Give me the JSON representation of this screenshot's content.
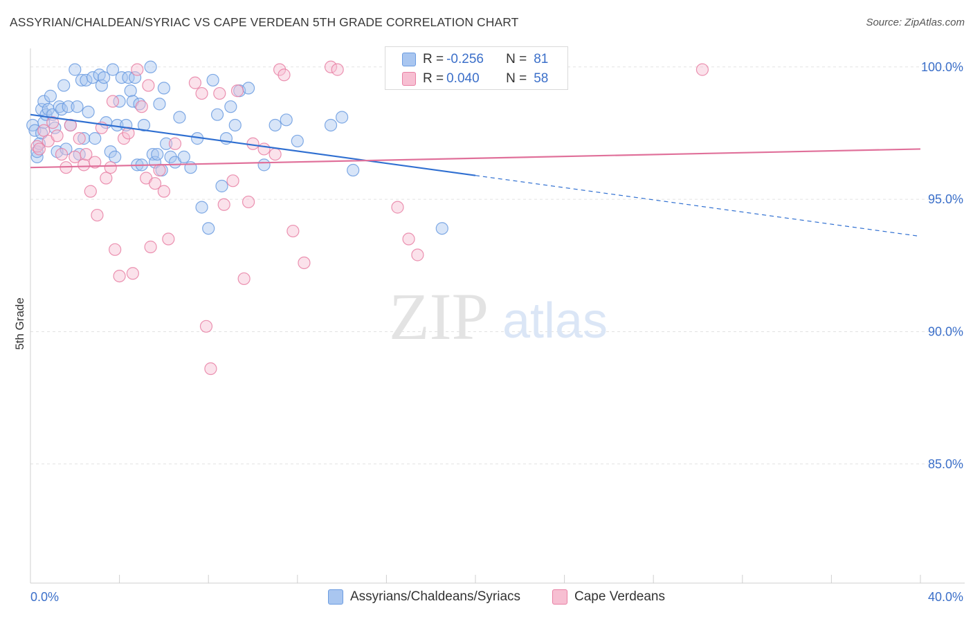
{
  "title": "ASSYRIAN/CHALDEAN/SYRIAC VS CAPE VERDEAN 5TH GRADE CORRELATION CHART",
  "source": "Source: ZipAtlas.com",
  "watermark": {
    "zip": "ZIP",
    "atlas": "atlas"
  },
  "legend": {
    "r_label": "R =",
    "n_label": "N =",
    "rows": [
      {
        "r": "-0.256",
        "n": "81"
      },
      {
        "r": "0.040",
        "n": "58"
      }
    ]
  },
  "bottom_legend": [
    "Assyrians/Chaldeans/Syriacs",
    "Cape Verdeans"
  ],
  "chart_data": {
    "type": "scatter",
    "title": "ASSYRIAN/CHALDEAN/SYRIAC VS CAPE VERDEAN 5TH GRADE CORRELATION CHART",
    "ylabel": "5th Grade",
    "xlabel": "",
    "x_ticks": [
      "0.0%",
      "40.0%"
    ],
    "y_ticks": [
      "100.0%",
      "95.0%",
      "90.0%",
      "85.0%"
    ],
    "xlim": [
      0,
      40
    ],
    "ylim": [
      80.5,
      100.7
    ],
    "grid": "horizontal dashed",
    "legend_position": "top-center",
    "series": [
      {
        "name": "Assyrians/Chaldeans/Syriacs",
        "color": "#6a9be0",
        "fill": "#a9c6f0",
        "r": -0.256,
        "n": 81,
        "trend": {
          "x0": 0,
          "y0": 98.2,
          "x1": 20,
          "y1": 95.9,
          "dash_to_x": 40,
          "dash_to_y": 93.6
        },
        "points": [
          [
            0.1,
            97.8
          ],
          [
            0.2,
            97.6
          ],
          [
            0.3,
            96.6
          ],
          [
            0.3,
            96.8
          ],
          [
            0.4,
            97.1
          ],
          [
            0.5,
            97.5
          ],
          [
            0.5,
            98.4
          ],
          [
            0.6,
            98.7
          ],
          [
            0.6,
            97.9
          ],
          [
            0.7,
            98.2
          ],
          [
            0.8,
            98.4
          ],
          [
            0.9,
            98.9
          ],
          [
            1.0,
            98.2
          ],
          [
            1.1,
            97.7
          ],
          [
            1.2,
            96.8
          ],
          [
            1.3,
            98.5
          ],
          [
            1.4,
            98.4
          ],
          [
            1.5,
            99.3
          ],
          [
            1.6,
            96.9
          ],
          [
            1.7,
            98.5
          ],
          [
            1.8,
            97.8
          ],
          [
            2.0,
            99.9
          ],
          [
            2.1,
            98.5
          ],
          [
            2.2,
            96.7
          ],
          [
            2.3,
            99.5
          ],
          [
            2.4,
            97.3
          ],
          [
            2.5,
            99.5
          ],
          [
            2.6,
            98.3
          ],
          [
            2.8,
            99.6
          ],
          [
            2.9,
            97.3
          ],
          [
            3.1,
            99.7
          ],
          [
            3.2,
            99.3
          ],
          [
            3.3,
            99.6
          ],
          [
            3.4,
            97.9
          ],
          [
            3.6,
            96.8
          ],
          [
            3.7,
            99.9
          ],
          [
            3.8,
            96.6
          ],
          [
            3.9,
            97.8
          ],
          [
            4.0,
            98.7
          ],
          [
            4.1,
            99.6
          ],
          [
            4.3,
            97.8
          ],
          [
            4.4,
            99.6
          ],
          [
            4.5,
            99.1
          ],
          [
            4.6,
            98.7
          ],
          [
            4.7,
            99.6
          ],
          [
            4.8,
            96.3
          ],
          [
            4.9,
            98.6
          ],
          [
            5.0,
            96.3
          ],
          [
            5.1,
            97.8
          ],
          [
            5.4,
            100.0
          ],
          [
            5.5,
            96.7
          ],
          [
            5.6,
            96.4
          ],
          [
            5.7,
            96.7
          ],
          [
            5.8,
            98.6
          ],
          [
            5.9,
            96.1
          ],
          [
            6.0,
            99.2
          ],
          [
            6.1,
            97.1
          ],
          [
            6.3,
            96.6
          ],
          [
            6.5,
            96.4
          ],
          [
            6.7,
            98.1
          ],
          [
            6.9,
            96.6
          ],
          [
            7.2,
            96.2
          ],
          [
            7.5,
            97.3
          ],
          [
            7.7,
            94.7
          ],
          [
            8.0,
            93.9
          ],
          [
            8.2,
            99.5
          ],
          [
            8.4,
            98.2
          ],
          [
            8.6,
            95.5
          ],
          [
            8.8,
            97.3
          ],
          [
            9.0,
            98.5
          ],
          [
            9.2,
            97.8
          ],
          [
            9.4,
            99.1
          ],
          [
            9.8,
            99.2
          ],
          [
            10.5,
            96.3
          ],
          [
            11.0,
            97.8
          ],
          [
            11.5,
            98.0
          ],
          [
            12.0,
            97.2
          ],
          [
            13.5,
            97.8
          ],
          [
            14.0,
            98.1
          ],
          [
            14.5,
            96.1
          ],
          [
            18.5,
            93.9
          ]
        ]
      },
      {
        "name": "Cape Verdeans",
        "color": "#e87fa3",
        "fill": "#f7bfd2",
        "r": 0.04,
        "n": 58,
        "trend": {
          "x0": 0,
          "y0": 96.2,
          "x1": 40,
          "y1": 96.9
        },
        "points": [
          [
            0.3,
            97.0
          ],
          [
            0.4,
            96.9
          ],
          [
            0.6,
            97.6
          ],
          [
            0.8,
            97.2
          ],
          [
            1.0,
            97.9
          ],
          [
            1.2,
            97.4
          ],
          [
            1.4,
            96.7
          ],
          [
            1.6,
            96.2
          ],
          [
            1.8,
            97.8
          ],
          [
            2.0,
            96.6
          ],
          [
            2.2,
            97.3
          ],
          [
            2.4,
            96.3
          ],
          [
            2.5,
            96.7
          ],
          [
            2.7,
            95.3
          ],
          [
            2.9,
            96.4
          ],
          [
            3.0,
            94.4
          ],
          [
            3.2,
            97.7
          ],
          [
            3.4,
            95.8
          ],
          [
            3.6,
            96.2
          ],
          [
            3.7,
            98.7
          ],
          [
            3.8,
            93.1
          ],
          [
            4.0,
            92.1
          ],
          [
            4.2,
            97.3
          ],
          [
            4.4,
            97.5
          ],
          [
            4.6,
            92.2
          ],
          [
            4.8,
            99.9
          ],
          [
            5.0,
            98.5
          ],
          [
            5.2,
            95.8
          ],
          [
            5.3,
            99.3
          ],
          [
            5.4,
            93.2
          ],
          [
            5.6,
            95.6
          ],
          [
            5.8,
            96.1
          ],
          [
            6.0,
            95.3
          ],
          [
            6.2,
            93.5
          ],
          [
            6.5,
            97.1
          ],
          [
            7.4,
            99.4
          ],
          [
            7.7,
            99.0
          ],
          [
            7.9,
            90.2
          ],
          [
            8.1,
            88.6
          ],
          [
            8.5,
            99.0
          ],
          [
            8.7,
            94.8
          ],
          [
            9.1,
            95.7
          ],
          [
            9.3,
            99.1
          ],
          [
            9.6,
            92.0
          ],
          [
            9.8,
            94.9
          ],
          [
            10.0,
            97.1
          ],
          [
            10.5,
            96.9
          ],
          [
            11.0,
            96.7
          ],
          [
            11.2,
            99.9
          ],
          [
            11.4,
            99.7
          ],
          [
            11.8,
            93.8
          ],
          [
            12.3,
            92.6
          ],
          [
            13.5,
            100.0
          ],
          [
            13.8,
            99.9
          ],
          [
            16.5,
            94.7
          ],
          [
            17.0,
            93.5
          ],
          [
            17.4,
            92.9
          ],
          [
            30.2,
            99.9
          ]
        ]
      }
    ]
  }
}
